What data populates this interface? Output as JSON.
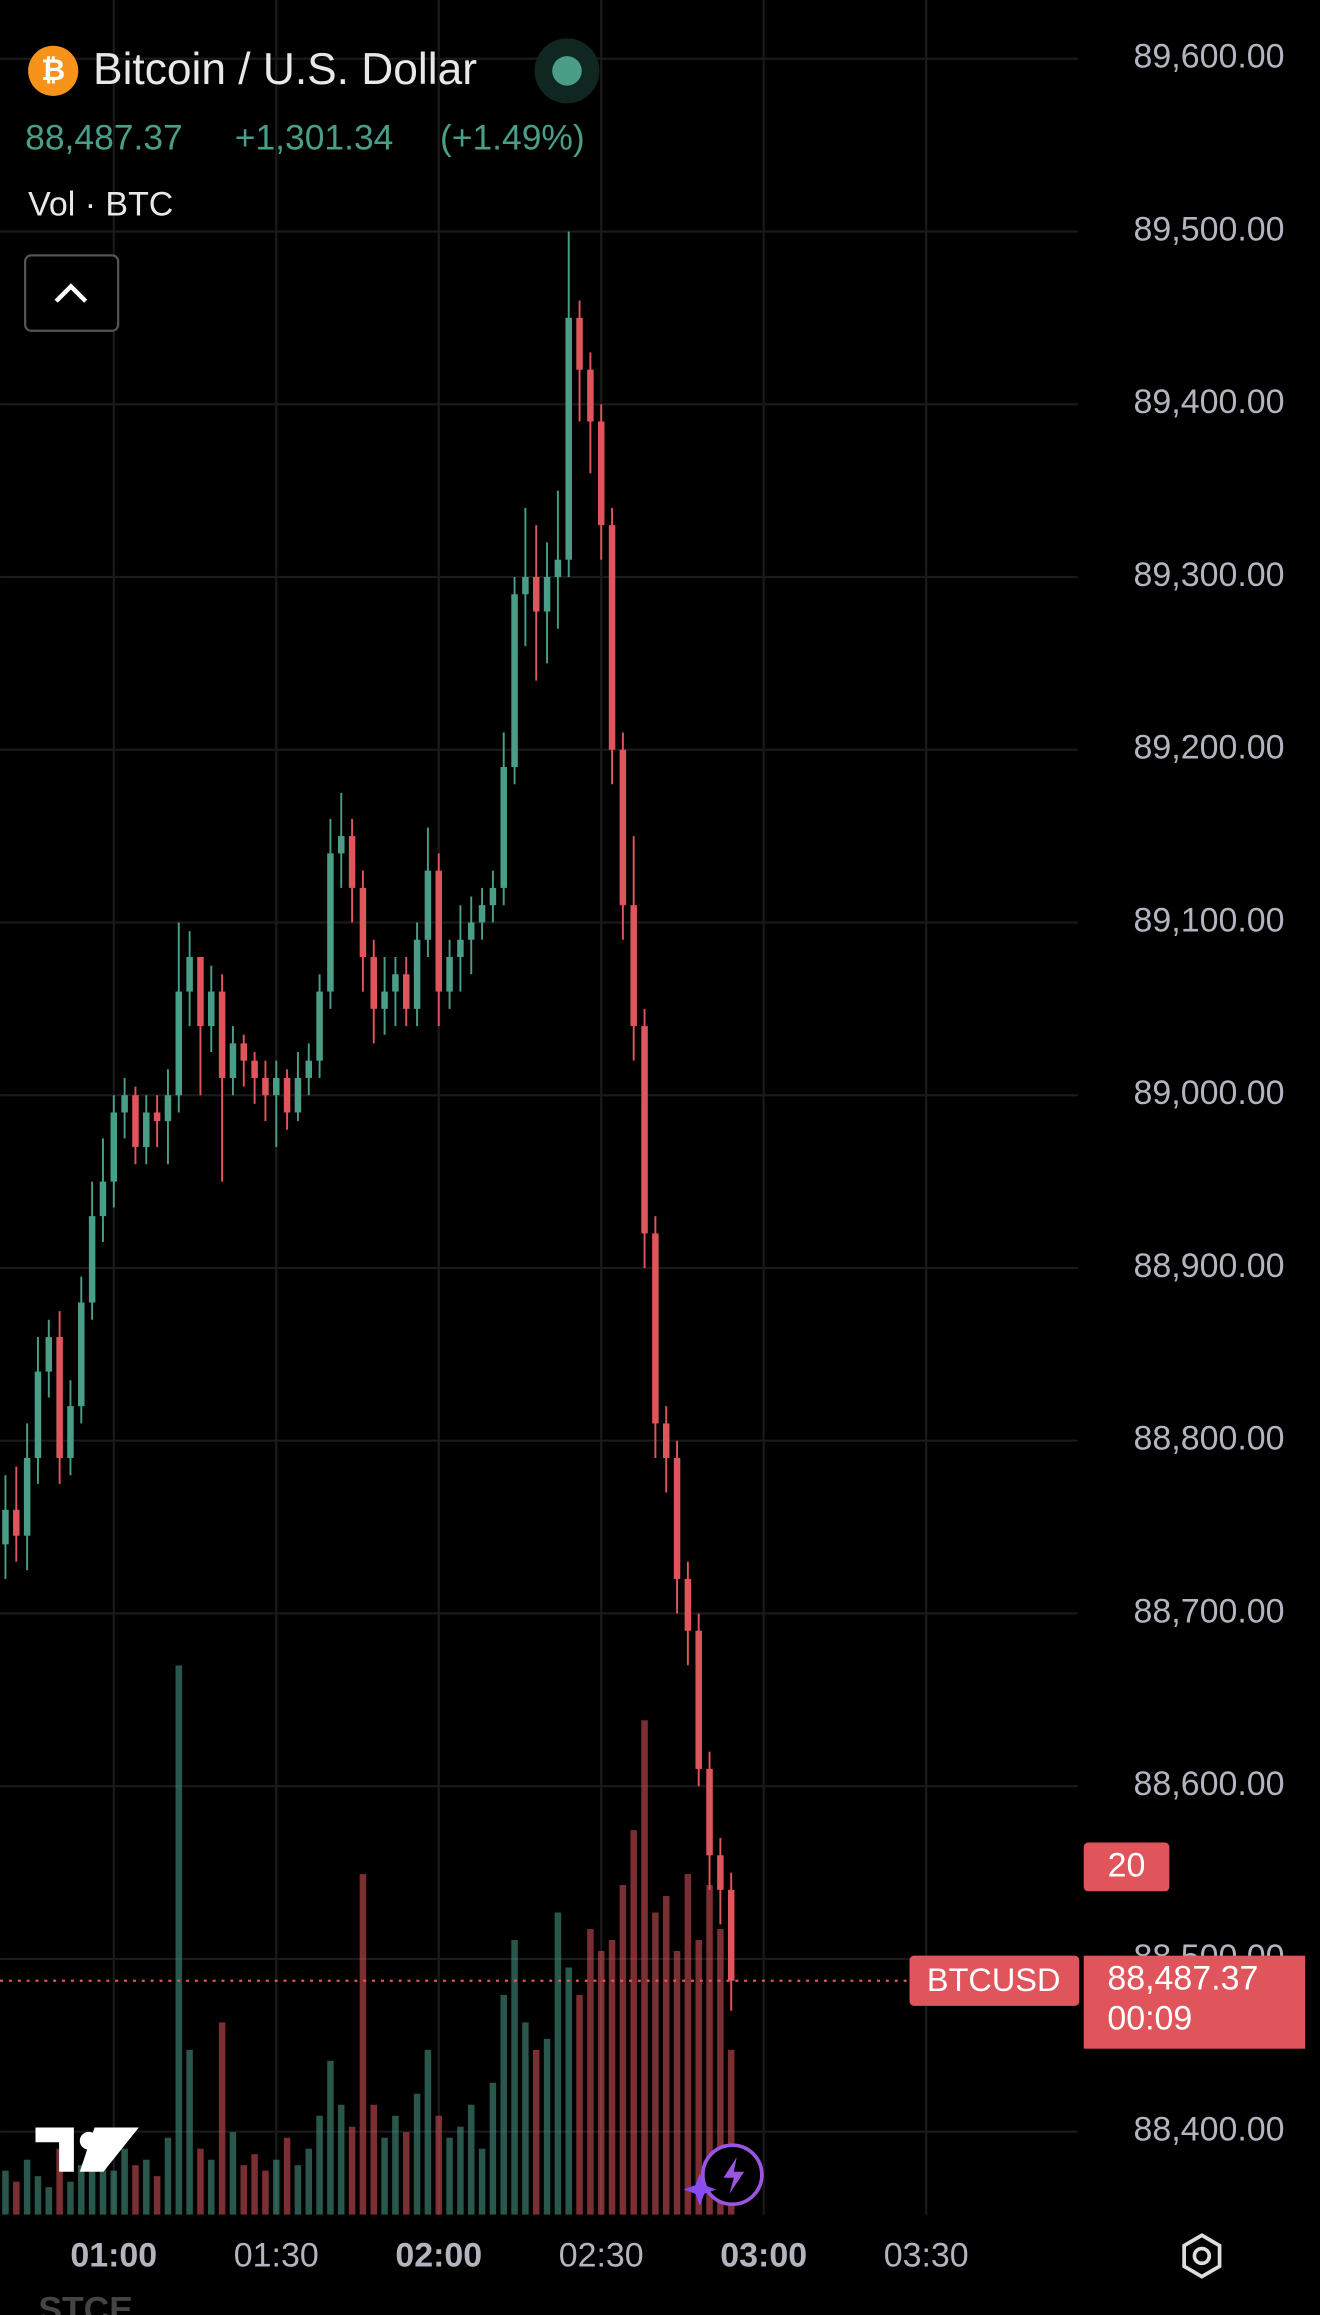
{
  "header": {
    "title": "Bitcoin / U.S. Dollar",
    "price": "88,487.37",
    "change": "+1,301.34",
    "change_pct": "(+1.49%)",
    "volume_label": "Vol · BTC"
  },
  "chart_data": {
    "type": "candlestick",
    "up_color": "#4a9e88",
    "down_color": "#e0555c",
    "grid": true,
    "x": [
      40,
      42,
      44,
      46,
      48,
      50,
      52,
      54,
      56,
      58,
      60,
      62,
      64,
      66,
      68,
      70,
      72,
      74,
      76,
      78,
      80,
      82,
      84,
      86,
      88,
      90,
      92,
      94,
      96,
      98,
      100,
      102,
      104,
      106,
      108,
      110,
      112,
      114,
      116,
      118,
      120,
      122,
      124,
      126,
      128,
      130,
      132,
      134,
      136,
      138,
      140,
      142,
      144,
      146,
      148,
      150,
      152,
      154,
      156,
      158,
      160,
      162,
      164,
      166,
      168,
      170,
      172,
      174
    ],
    "open": [
      88740,
      88760,
      88745,
      88790,
      88840,
      88860,
      88790,
      88820,
      88880,
      88930,
      88950,
      88990,
      89000,
      88970,
      88990,
      88985,
      89000,
      89060,
      89080,
      89040,
      89060,
      89010,
      89030,
      89020,
      89010,
      89000,
      89010,
      88990,
      89010,
      89020,
      89060,
      89140,
      89150,
      89120,
      89080,
      89050,
      89060,
      89070,
      89050,
      89090,
      89130,
      89060,
      89080,
      89090,
      89100,
      89110,
      89120,
      89190,
      89290,
      89300,
      89280,
      89300,
      89310,
      89450,
      89420,
      89390,
      89330,
      89200,
      89110,
      89040,
      88920,
      88810,
      88790,
      88720,
      88690,
      88610,
      88560,
      88540
    ],
    "high": [
      88780,
      88785,
      88810,
      88860,
      88870,
      88875,
      88835,
      88895,
      88950,
      88975,
      89000,
      89010,
      89005,
      89000,
      89000,
      89015,
      89100,
      89095,
      89070,
      89075,
      89070,
      89040,
      89035,
      89025,
      89020,
      89020,
      89015,
      89025,
      89030,
      89070,
      89160,
      89175,
      89160,
      89130,
      89090,
      89080,
      89080,
      89080,
      89100,
      89155,
      89140,
      89090,
      89110,
      89115,
      89120,
      89130,
      89210,
      89300,
      89340,
      89330,
      89320,
      89350,
      89500,
      89460,
      89430,
      89400,
      89340,
      89210,
      89150,
      89050,
      88930,
      88820,
      88800,
      88730,
      88700,
      88620,
      88570,
      88550
    ],
    "low": [
      88720,
      88730,
      88725,
      88775,
      88825,
      88775,
      88780,
      88810,
      88870,
      88915,
      88935,
      88975,
      88960,
      88960,
      88970,
      88960,
      88990,
      89040,
      89000,
      89025,
      88950,
      89000,
      89005,
      88995,
      88985,
      88970,
      88980,
      88985,
      89000,
      89010,
      89050,
      89120,
      89100,
      89060,
      89030,
      89035,
      89040,
      89040,
      89040,
      89080,
      89040,
      89050,
      89060,
      89070,
      89090,
      89100,
      89110,
      89180,
      89260,
      89240,
      89250,
      89270,
      89300,
      89390,
      89360,
      89310,
      89180,
      89090,
      89020,
      88900,
      88790,
      88770,
      88700,
      88670,
      88600,
      88540,
      88520,
      88470
    ],
    "close": [
      88760,
      88745,
      88790,
      88840,
      88860,
      88790,
      88820,
      88880,
      88930,
      88950,
      88990,
      89000,
      88970,
      88990,
      88985,
      89000,
      89060,
      89080,
      89040,
      89060,
      89010,
      89030,
      89020,
      89010,
      89000,
      89010,
      88990,
      89010,
      89020,
      89060,
      89140,
      89150,
      89120,
      89080,
      89050,
      89060,
      89070,
      89050,
      89090,
      89130,
      89060,
      89080,
      89090,
      89100,
      89110,
      89120,
      89190,
      89290,
      89300,
      89280,
      89300,
      89310,
      89450,
      89420,
      89390,
      89330,
      89200,
      89110,
      89040,
      88920,
      88810,
      88790,
      88720,
      88690,
      88610,
      88560,
      88540,
      88487.37
    ],
    "volume": [
      8,
      6,
      10,
      7,
      5,
      12,
      6,
      9,
      15,
      10,
      8,
      12,
      9,
      10,
      7,
      14,
      100,
      30,
      12,
      10,
      35,
      15,
      9,
      11,
      8,
      10,
      14,
      9,
      12,
      18,
      28,
      20,
      16,
      62,
      20,
      14,
      18,
      15,
      22,
      30,
      18,
      14,
      16,
      20,
      12,
      24,
      40,
      50,
      35,
      30,
      32,
      55,
      45,
      40,
      52,
      48,
      50,
      60,
      70,
      90,
      55,
      58,
      48,
      62,
      50,
      60,
      52,
      30
    ],
    "xlim": [
      39,
      238
    ],
    "xticks": [
      {
        "value": 60,
        "label": "01:00"
      },
      {
        "value": 90,
        "label": "01:30"
      },
      {
        "value": 120,
        "label": "02:00"
      },
      {
        "value": 150,
        "label": "02:30"
      },
      {
        "value": 180,
        "label": "03:00"
      },
      {
        "value": 210,
        "label": "03:30"
      }
    ],
    "ylim": [
      88352,
      89634
    ],
    "yticks": [
      {
        "value": 88400,
        "label": "88,400.00"
      },
      {
        "value": 88500,
        "label": "88,500.00"
      },
      {
        "value": 88600,
        "label": "88,600.00"
      },
      {
        "value": 88700,
        "label": "88,700.00"
      },
      {
        "value": 88800,
        "label": "88,800.00"
      },
      {
        "value": 88900,
        "label": "88,900.00"
      },
      {
        "value": 89000,
        "label": "89,000.00"
      },
      {
        "value": 89100,
        "label": "89,100.00"
      },
      {
        "value": 89200,
        "label": "89,200.00"
      },
      {
        "value": 89300,
        "label": "89,300.00"
      },
      {
        "value": 89400,
        "label": "89,400.00"
      },
      {
        "value": 89500,
        "label": "89,500.00"
      },
      {
        "value": 89600,
        "label": "89,600.00"
      }
    ],
    "last_price": {
      "symbol": "BTCUSD",
      "value": 88487.37,
      "label": "88,487.37",
      "countdown": "00:09"
    },
    "badge": "20"
  },
  "footer_label": "STCE"
}
